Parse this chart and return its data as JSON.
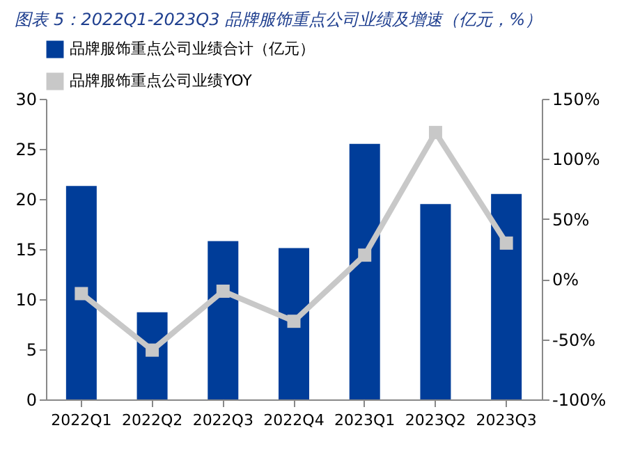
{
  "chart_data": {
    "type": "bar",
    "title": "图表 5：2022Q1-2023Q3 品牌服饰重点公司业绩及增速（亿元，%）",
    "categories": [
      "2022Q1",
      "2022Q2",
      "2022Q3",
      "2022Q4",
      "2023Q1",
      "2023Q2",
      "2023Q3"
    ],
    "series": [
      {
        "name": "品牌服饰重点公司业绩合计（亿元）",
        "color": "#003d99",
        "values": [
          21.3,
          8.7,
          15.8,
          15.1,
          25.5,
          19.5,
          20.5
        ]
      },
      {
        "name": "品牌服饰重点公司业绩YOY",
        "type": "line",
        "axis": "y2",
        "color": "#c8c8c8",
        "values": [
          -12,
          -59,
          -10,
          -35,
          20,
          122,
          30
        ]
      }
    ],
    "ylim": [
      0,
      30
    ],
    "yticks": [
      0,
      5,
      10,
      15,
      20,
      25,
      30
    ],
    "y2lim": [
      -100,
      150
    ],
    "y2ticks": [
      {
        "value": -100,
        "label": "-100%"
      },
      {
        "value": -50,
        "label": "-50%"
      },
      {
        "value": 0,
        "label": "0%"
      },
      {
        "value": 50,
        "label": "50%"
      },
      {
        "value": 100,
        "label": "100%"
      },
      {
        "value": 150,
        "label": "150%"
      }
    ],
    "marker": "square",
    "legend": "top",
    "grid": false
  }
}
